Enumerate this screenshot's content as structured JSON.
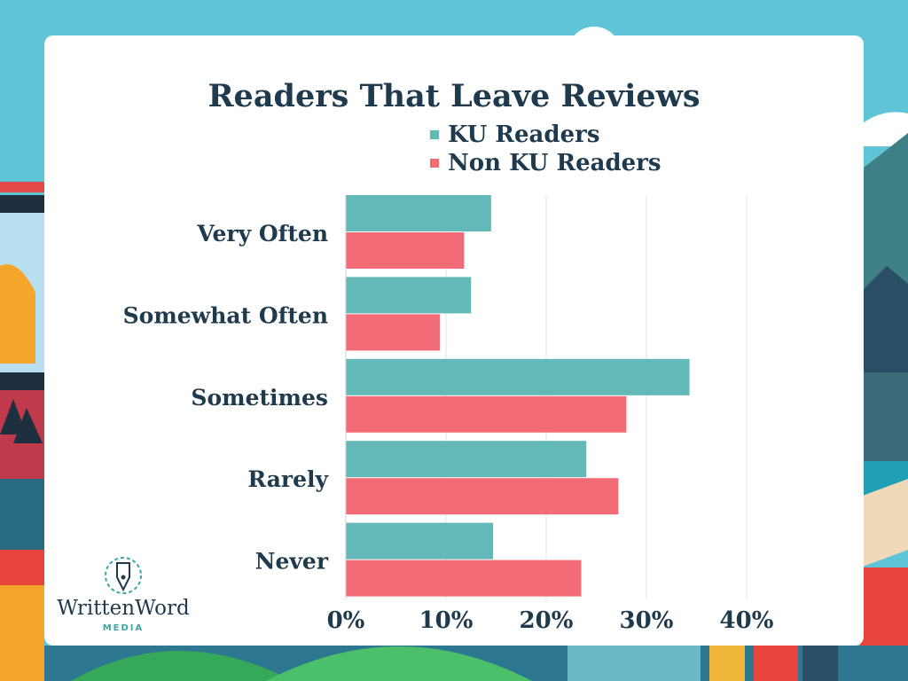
{
  "title": "Readers That Leave Reviews",
  "colors": {
    "ku": "#62b9b8",
    "nonku": "#f46b78",
    "text": "#1f3a4d",
    "grid": "#e3e3e3"
  },
  "legend": [
    "KU Readers",
    "Non KU Readers"
  ],
  "logo": {
    "name": "WrittenWord",
    "sub": "MEDIA"
  },
  "chart_data": {
    "type": "bar",
    "orientation": "horizontal",
    "title": "Readers That Leave Reviews",
    "categories": [
      "Very Often",
      "Somewhat Often",
      "Sometimes",
      "Rarely",
      "Never"
    ],
    "series": [
      {
        "name": "KU Readers",
        "values": [
          14.5,
          12.5,
          34.3,
          24.0,
          14.7
        ]
      },
      {
        "name": "Non KU Readers",
        "values": [
          11.8,
          9.4,
          28.0,
          27.2,
          23.5
        ]
      }
    ],
    "x_ticks": [
      "0%",
      "10%",
      "20%",
      "30%",
      "40%"
    ],
    "xlim": [
      0,
      40
    ],
    "grid": "vertical",
    "legend_position": "top"
  }
}
